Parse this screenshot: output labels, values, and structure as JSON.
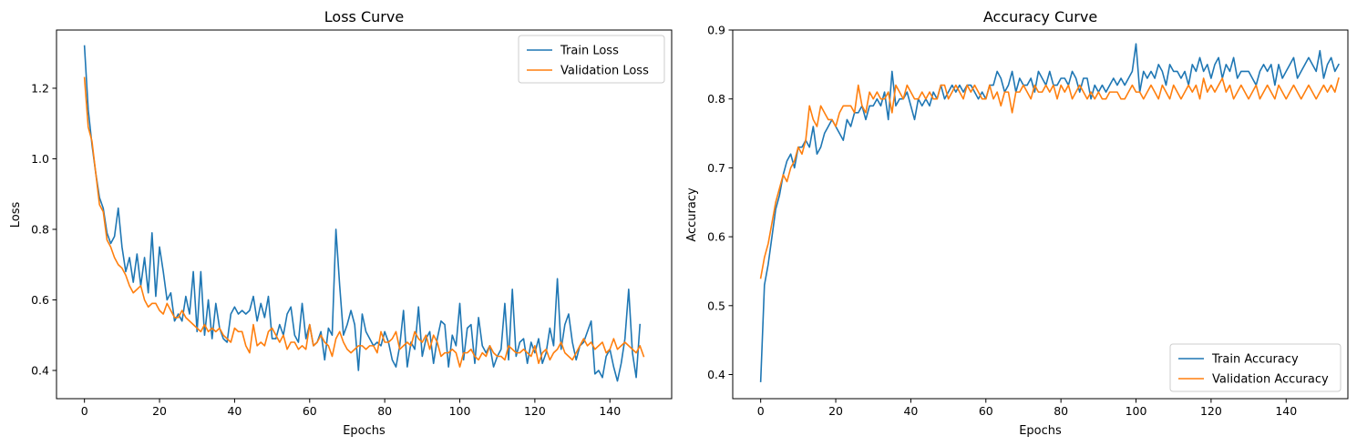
{
  "chart_data": [
    {
      "type": "line",
      "title": "Loss Curve",
      "xlabel": "Epochs",
      "ylabel": "Loss",
      "xlim": [
        -7.45,
        156.45
      ],
      "ylim": [
        0.32,
        1.365
      ],
      "xticks": [
        0,
        20,
        40,
        60,
        80,
        100,
        120,
        140
      ],
      "xtick_labels": [
        "0",
        "20",
        "40",
        "60",
        "80",
        "100",
        "120",
        "140"
      ],
      "yticks": [
        0.4,
        0.6,
        0.8,
        1.0,
        1.2
      ],
      "ytick_labels": [
        "0.4",
        "0.6",
        "0.8",
        "1.0",
        "1.2"
      ],
      "legend_position": "upper right",
      "grid": false,
      "series": [
        {
          "name": "Train Loss",
          "color": "#1f77b4",
          "values": [
            1.32,
            1.14,
            1.04,
            0.96,
            0.89,
            0.86,
            0.79,
            0.76,
            0.78,
            0.86,
            0.75,
            0.68,
            0.72,
            0.65,
            0.73,
            0.64,
            0.72,
            0.62,
            0.79,
            0.61,
            0.75,
            0.68,
            0.6,
            0.62,
            0.54,
            0.56,
            0.54,
            0.61,
            0.56,
            0.68,
            0.51,
            0.68,
            0.5,
            0.6,
            0.49,
            0.59,
            0.52,
            0.49,
            0.48,
            0.56,
            0.58,
            0.56,
            0.57,
            0.56,
            0.57,
            0.61,
            0.54,
            0.59,
            0.55,
            0.61,
            0.49,
            0.49,
            0.53,
            0.5,
            0.56,
            0.58,
            0.5,
            0.48,
            0.59,
            0.49,
            0.53,
            0.47,
            0.48,
            0.51,
            0.43,
            0.52,
            0.5,
            0.8,
            0.64,
            0.5,
            0.53,
            0.57,
            0.53,
            0.4,
            0.56,
            0.51,
            0.49,
            0.47,
            0.48,
            0.47,
            0.51,
            0.48,
            0.43,
            0.41,
            0.47,
            0.57,
            0.41,
            0.48,
            0.46,
            0.58,
            0.44,
            0.49,
            0.51,
            0.42,
            0.49,
            0.54,
            0.53,
            0.41,
            0.5,
            0.47,
            0.59,
            0.43,
            0.52,
            0.53,
            0.42,
            0.55,
            0.47,
            0.45,
            0.47,
            0.41,
            0.44,
            0.46,
            0.59,
            0.43,
            0.63,
            0.44,
            0.48,
            0.49,
            0.42,
            0.48,
            0.45,
            0.49,
            0.42,
            0.45,
            0.52,
            0.47,
            0.66,
            0.46,
            0.53,
            0.56,
            0.48,
            0.43,
            0.47,
            0.48,
            0.51,
            0.54,
            0.39,
            0.4,
            0.38,
            0.44,
            0.46,
            0.41,
            0.37,
            0.42,
            0.49,
            0.63,
            0.45,
            0.38,
            0.53
          ]
        },
        {
          "name": "Validation Loss",
          "color": "#ff7f0e",
          "values": [
            1.23,
            1.09,
            1.05,
            0.96,
            0.87,
            0.85,
            0.77,
            0.75,
            0.72,
            0.7,
            0.69,
            0.67,
            0.64,
            0.62,
            0.63,
            0.64,
            0.6,
            0.58,
            0.59,
            0.59,
            0.57,
            0.56,
            0.59,
            0.57,
            0.55,
            0.55,
            0.57,
            0.55,
            0.54,
            0.53,
            0.52,
            0.51,
            0.53,
            0.51,
            0.52,
            0.51,
            0.52,
            0.5,
            0.49,
            0.48,
            0.52,
            0.51,
            0.51,
            0.47,
            0.45,
            0.53,
            0.47,
            0.48,
            0.47,
            0.51,
            0.52,
            0.5,
            0.48,
            0.5,
            0.46,
            0.48,
            0.48,
            0.46,
            0.47,
            0.46,
            0.53,
            0.47,
            0.48,
            0.5,
            0.48,
            0.47,
            0.44,
            0.49,
            0.51,
            0.48,
            0.46,
            0.45,
            0.46,
            0.47,
            0.47,
            0.46,
            0.47,
            0.47,
            0.45,
            0.51,
            0.48,
            0.48,
            0.49,
            0.51,
            0.46,
            0.47,
            0.48,
            0.47,
            0.51,
            0.49,
            0.48,
            0.5,
            0.46,
            0.5,
            0.48,
            0.44,
            0.45,
            0.45,
            0.46,
            0.45,
            0.41,
            0.45,
            0.45,
            0.46,
            0.44,
            0.43,
            0.45,
            0.44,
            0.47,
            0.45,
            0.44,
            0.44,
            0.43,
            0.47,
            0.46,
            0.45,
            0.45,
            0.46,
            0.45,
            0.44,
            0.47,
            0.42,
            0.45,
            0.46,
            0.43,
            0.45,
            0.46,
            0.48,
            0.45,
            0.44,
            0.43,
            0.45,
            0.47,
            0.49,
            0.47,
            0.48,
            0.46,
            0.47,
            0.48,
            0.45,
            0.46,
            0.49,
            0.46,
            0.47,
            0.48,
            0.47,
            0.46,
            0.45,
            0.47,
            0.44
          ]
        }
      ]
    },
    {
      "type": "line",
      "title": "Accuracy Curve",
      "xlabel": "Epochs",
      "ylabel": "Accuracy",
      "xlim": [
        -7.45,
        156.45
      ],
      "ylim": [
        0.365,
        0.9
      ],
      "xticks": [
        0,
        20,
        40,
        60,
        80,
        100,
        120,
        140
      ],
      "xtick_labels": [
        "0",
        "20",
        "40",
        "60",
        "80",
        "100",
        "120",
        "140"
      ],
      "yticks": [
        0.4,
        0.5,
        0.6,
        0.7,
        0.8,
        0.9
      ],
      "ytick_labels": [
        "0.4",
        "0.5",
        "0.6",
        "0.7",
        "0.8",
        "0.9"
      ],
      "legend_position": "lower right",
      "grid": false,
      "series": [
        {
          "name": "Train Accuracy",
          "color": "#1f77b4",
          "values": [
            0.39,
            0.53,
            0.56,
            0.6,
            0.64,
            0.66,
            0.69,
            0.71,
            0.72,
            0.7,
            0.73,
            0.73,
            0.74,
            0.73,
            0.76,
            0.72,
            0.73,
            0.75,
            0.76,
            0.77,
            0.76,
            0.75,
            0.74,
            0.77,
            0.76,
            0.78,
            0.78,
            0.79,
            0.77,
            0.79,
            0.79,
            0.8,
            0.79,
            0.81,
            0.77,
            0.84,
            0.79,
            0.8,
            0.8,
            0.81,
            0.79,
            0.77,
            0.8,
            0.79,
            0.8,
            0.79,
            0.81,
            0.8,
            0.82,
            0.8,
            0.81,
            0.82,
            0.81,
            0.82,
            0.81,
            0.82,
            0.82,
            0.81,
            0.8,
            0.81,
            0.8,
            0.82,
            0.82,
            0.84,
            0.83,
            0.81,
            0.82,
            0.84,
            0.81,
            0.83,
            0.82,
            0.82,
            0.83,
            0.81,
            0.84,
            0.83,
            0.82,
            0.84,
            0.82,
            0.82,
            0.83,
            0.83,
            0.82,
            0.84,
            0.83,
            0.81,
            0.83,
            0.83,
            0.8,
            0.82,
            0.81,
            0.82,
            0.81,
            0.82,
            0.83,
            0.82,
            0.83,
            0.82,
            0.83,
            0.84,
            0.88,
            0.81,
            0.84,
            0.83,
            0.84,
            0.83,
            0.85,
            0.84,
            0.82,
            0.85,
            0.84,
            0.84,
            0.83,
            0.84,
            0.82,
            0.85,
            0.84,
            0.86,
            0.84,
            0.85,
            0.83,
            0.85,
            0.86,
            0.83,
            0.85,
            0.84,
            0.86,
            0.83,
            0.84,
            0.84,
            0.84,
            0.83,
            0.82,
            0.84,
            0.85,
            0.84,
            0.85,
            0.82,
            0.85,
            0.83,
            0.84,
            0.85,
            0.86,
            0.83,
            0.84,
            0.85,
            0.86,
            0.85,
            0.84,
            0.87,
            0.83,
            0.85,
            0.86,
            0.84,
            0.85
          ]
        },
        {
          "name": "Validation Accuracy",
          "color": "#ff7f0e",
          "values": [
            0.54,
            0.57,
            0.59,
            0.62,
            0.65,
            0.67,
            0.69,
            0.68,
            0.7,
            0.71,
            0.73,
            0.72,
            0.74,
            0.79,
            0.77,
            0.76,
            0.79,
            0.78,
            0.77,
            0.77,
            0.76,
            0.78,
            0.79,
            0.79,
            0.79,
            0.78,
            0.82,
            0.79,
            0.78,
            0.81,
            0.8,
            0.81,
            0.8,
            0.8,
            0.81,
            0.78,
            0.82,
            0.81,
            0.8,
            0.82,
            0.81,
            0.8,
            0.8,
            0.81,
            0.8,
            0.81,
            0.8,
            0.8,
            0.82,
            0.82,
            0.8,
            0.81,
            0.82,
            0.81,
            0.8,
            0.82,
            0.81,
            0.82,
            0.81,
            0.8,
            0.8,
            0.82,
            0.8,
            0.81,
            0.79,
            0.81,
            0.81,
            0.78,
            0.81,
            0.81,
            0.82,
            0.81,
            0.8,
            0.82,
            0.81,
            0.81,
            0.82,
            0.81,
            0.82,
            0.8,
            0.82,
            0.81,
            0.82,
            0.8,
            0.81,
            0.82,
            0.81,
            0.8,
            0.81,
            0.8,
            0.81,
            0.8,
            0.8,
            0.81,
            0.81,
            0.81,
            0.8,
            0.8,
            0.81,
            0.82,
            0.81,
            0.81,
            0.8,
            0.81,
            0.82,
            0.81,
            0.8,
            0.82,
            0.81,
            0.8,
            0.82,
            0.81,
            0.8,
            0.81,
            0.82,
            0.81,
            0.82,
            0.8,
            0.83,
            0.81,
            0.82,
            0.81,
            0.82,
            0.83,
            0.81,
            0.82,
            0.8,
            0.81,
            0.82,
            0.81,
            0.8,
            0.81,
            0.82,
            0.8,
            0.81,
            0.82,
            0.81,
            0.8,
            0.82,
            0.81,
            0.8,
            0.81,
            0.82,
            0.81,
            0.8,
            0.81,
            0.82,
            0.81,
            0.8,
            0.81,
            0.82,
            0.81,
            0.82,
            0.81,
            0.83
          ]
        }
      ]
    }
  ]
}
